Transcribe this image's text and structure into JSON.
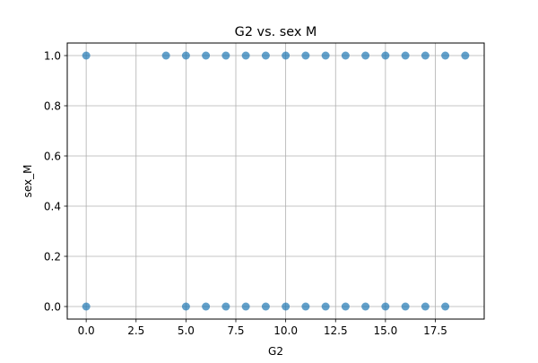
{
  "chart_data": {
    "type": "scatter",
    "title": "G2 vs. sex M",
    "xlabel": "G2",
    "ylabel": "sex_M",
    "xlim": [
      -0.95,
      19.95
    ],
    "ylim": [
      -0.05,
      1.05
    ],
    "xticks": [
      0.0,
      2.5,
      5.0,
      7.5,
      10.0,
      12.5,
      15.0,
      17.5
    ],
    "xtick_labels": [
      "0.0",
      "2.5",
      "5.0",
      "7.5",
      "10.0",
      "12.5",
      "15.0",
      "17.5"
    ],
    "yticks": [
      0.0,
      0.2,
      0.4,
      0.6,
      0.8,
      1.0
    ],
    "ytick_labels": [
      "0.0",
      "0.2",
      "0.4",
      "0.6",
      "0.8",
      "1.0"
    ],
    "grid": true,
    "marker_color": "#1f77b4",
    "marker_alpha": 0.7,
    "series": [
      {
        "x": [
          0,
          4,
          5,
          6,
          7,
          8,
          9,
          10,
          11,
          12,
          13,
          14,
          15,
          16,
          17,
          18,
          19,
          0,
          5,
          6,
          7,
          8,
          9,
          10,
          11,
          12,
          13,
          14,
          15,
          16,
          17,
          18
        ],
        "y": [
          1,
          1,
          1,
          1,
          1,
          1,
          1,
          1,
          1,
          1,
          1,
          1,
          1,
          1,
          1,
          1,
          1,
          0,
          0,
          0,
          0,
          0,
          0,
          0,
          0,
          0,
          0,
          0,
          0,
          0,
          0,
          0
        ]
      }
    ]
  }
}
